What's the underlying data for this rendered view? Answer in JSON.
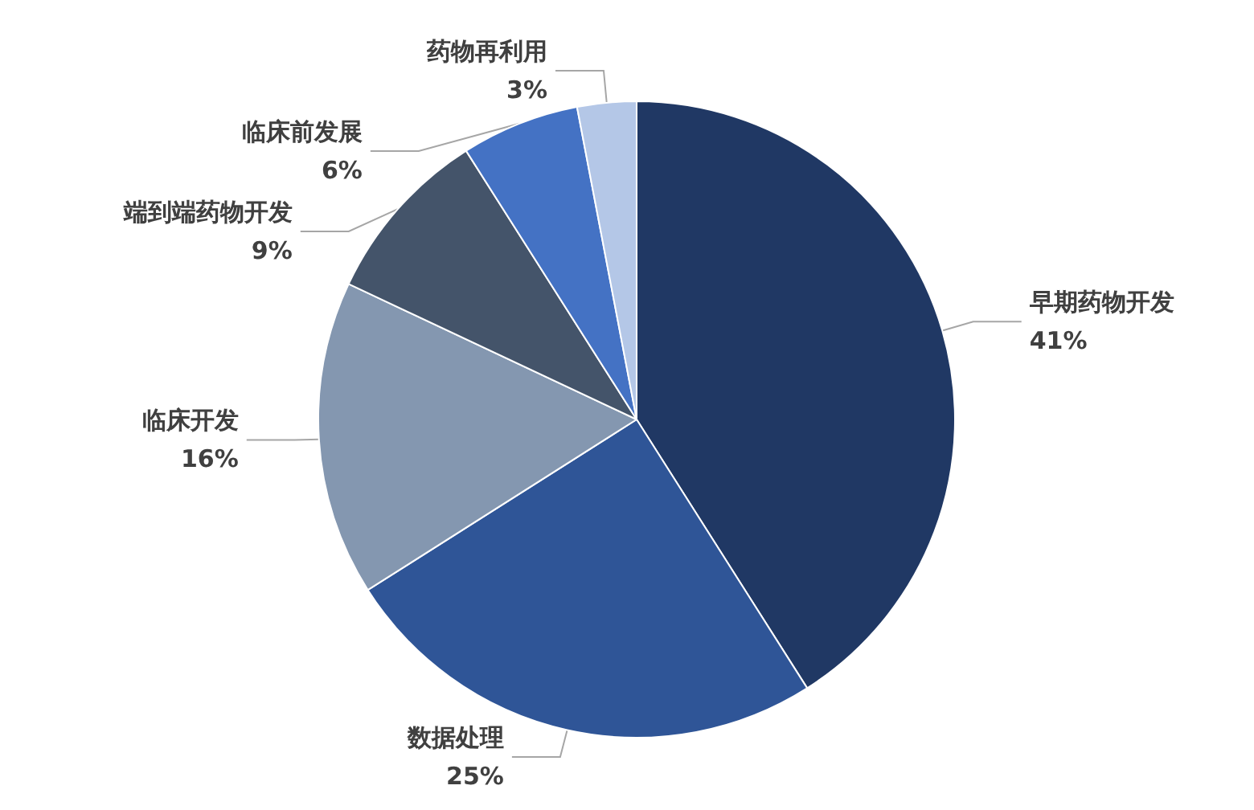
{
  "chart_data": {
    "type": "pie",
    "categories": [
      "早期药物开发",
      "数据处理",
      "临床开发",
      "端到端药物开发",
      "临床前发展",
      "药物再利用"
    ],
    "values": [
      41,
      25,
      16,
      9,
      6,
      3
    ],
    "value_labels": [
      "41%",
      "25%",
      "16%",
      "9%",
      "6%",
      "3%"
    ],
    "colors": [
      "#203864",
      "#2f5597",
      "#8497b0",
      "#44546a",
      "#4472c4",
      "#b4c7e7"
    ],
    "legend": false
  }
}
